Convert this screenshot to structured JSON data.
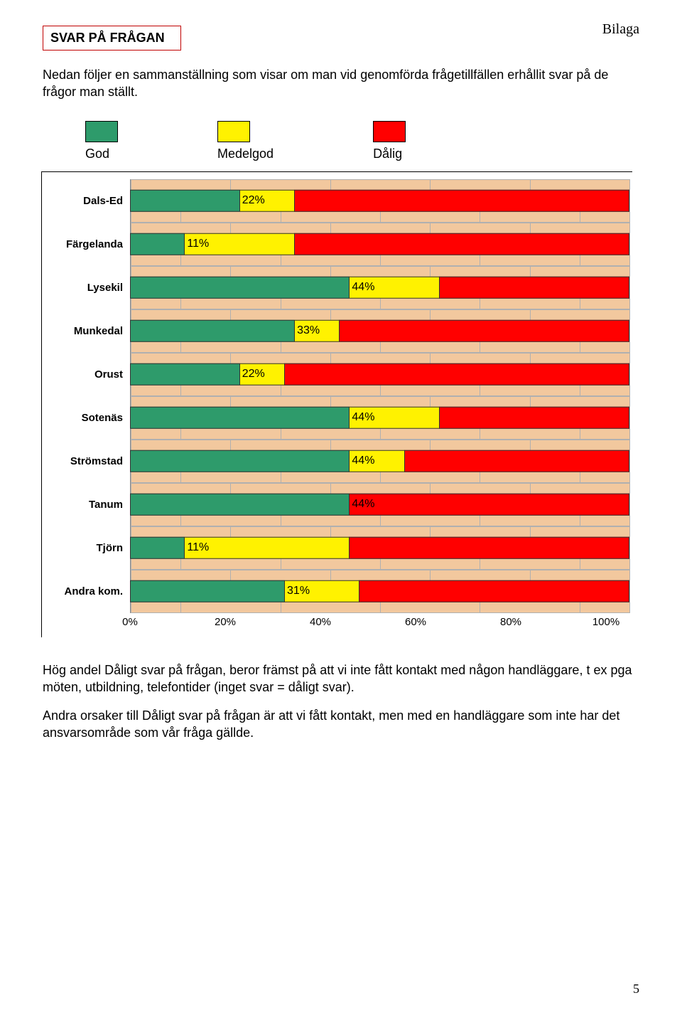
{
  "page": {
    "header_right": "Bilaga",
    "title": "SVAR PÅ FRÅGAN",
    "intro": "Nedan följer en sammanställning som visar om man vid genomförda frågetillfällen erhållit svar på de frågor man ställt.",
    "para1": "Hög andel Dåligt svar på frågan, beror främst på att vi inte fått kontakt med någon handläggare, t ex pga möten, utbildning, telefontider (inget svar = dåligt svar).",
    "para2": "Andra orsaker till Dåligt svar på frågan är att vi fått kontakt, men med en handläggare som inte har det ansvarsområde som vår fråga gällde.",
    "page_number": "5"
  },
  "legend": {
    "good_label": "God",
    "mid_label": "Medelgod",
    "bad_label": "Dålig",
    "good_color": "#2e9b6b",
    "mid_color": "#fff200",
    "bad_color": "#ff0000"
  },
  "chart": {
    "band_color": "#f2c89e",
    "axis_ticks": [
      "0%",
      "20%",
      "40%",
      "60%",
      "80%",
      "100%"
    ],
    "rows": [
      {
        "name": "Dals-Ed",
        "green": 22,
        "yellow": 11,
        "red": 67,
        "label": "22%"
      },
      {
        "name": "Färgelanda",
        "green": 11,
        "yellow": 22,
        "red": 67,
        "label": "11%"
      },
      {
        "name": "Lysekil",
        "green": 44,
        "yellow": 18,
        "red": 38,
        "label": "44%"
      },
      {
        "name": "Munkedal",
        "green": 33,
        "yellow": 9,
        "red": 58,
        "label": "33%"
      },
      {
        "name": "Orust",
        "green": 22,
        "yellow": 9,
        "red": 69,
        "label": "22%"
      },
      {
        "name": "Sotenäs",
        "green": 44,
        "yellow": 18,
        "red": 38,
        "label": "44%"
      },
      {
        "name": "Strömstad",
        "green": 44,
        "yellow": 11,
        "red": 45,
        "label": "44%"
      },
      {
        "name": "Tanum",
        "green": 44,
        "yellow": 0,
        "red": 56,
        "label": "44%"
      },
      {
        "name": "Tjörn",
        "green": 11,
        "yellow": 33,
        "red": 56,
        "label": "11%"
      },
      {
        "name": "Andra kom.",
        "green": 31,
        "yellow": 15,
        "red": 54,
        "label": "31%"
      }
    ]
  }
}
